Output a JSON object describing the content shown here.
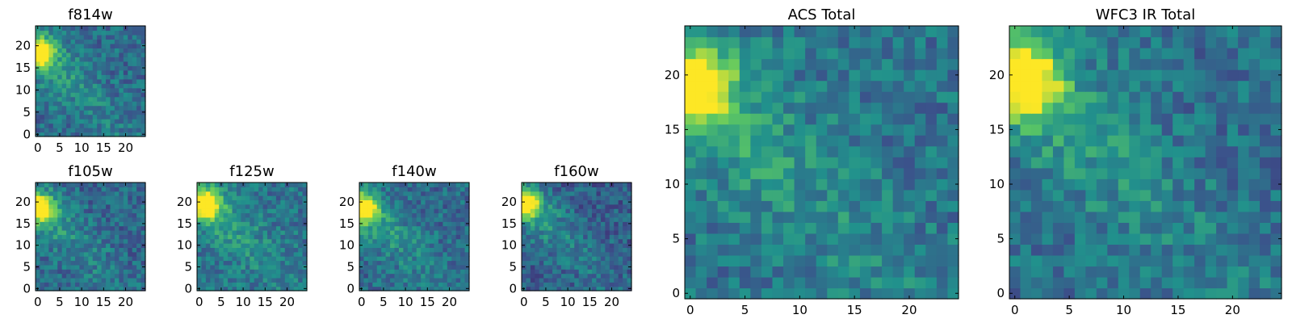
{
  "figure": {
    "colormap": {
      "name": "viridis",
      "stops": [
        "#440154",
        "#3b528b",
        "#21918c",
        "#5ec962",
        "#fde725"
      ]
    },
    "frame_color": "#000000"
  },
  "chart_data": [
    {
      "type": "heatmap",
      "id": "f814w",
      "title": "f814w",
      "grid_size": 25,
      "x_ticks": [
        0,
        5,
        10,
        15,
        20
      ],
      "y_ticks": [
        0,
        5,
        10,
        15,
        20
      ],
      "xlim": [
        -0.5,
        24.5
      ],
      "ylim": [
        -0.5,
        24.5
      ],
      "description": "Image stamp of a source; brightest pixels near x 0-1, y 16-21, diffuse glow along a diagonal toward lower right, noisy background",
      "peak": {
        "x": 0.5,
        "y": 18.5,
        "value": 1.0
      },
      "background_level": 0.35
    },
    {
      "type": "heatmap",
      "id": "f105w",
      "title": "f105w",
      "grid_size": 25,
      "x_ticks": [
        0,
        5,
        10,
        15,
        20
      ],
      "y_ticks": [
        0,
        5,
        10,
        15,
        20
      ],
      "xlim": [
        -0.5,
        24.5
      ],
      "ylim": [
        -0.5,
        24.5
      ],
      "peak": {
        "x": 0.5,
        "y": 18.5,
        "value": 1.0
      },
      "background_level": 0.33
    },
    {
      "type": "heatmap",
      "id": "f125w",
      "title": "f125w",
      "grid_size": 25,
      "x_ticks": [
        0,
        5,
        10,
        15,
        20
      ],
      "y_ticks": [
        0,
        5,
        10,
        15,
        20
      ],
      "xlim": [
        -0.5,
        24.5
      ],
      "ylim": [
        -0.5,
        24.5
      ],
      "peak": {
        "x": 1.5,
        "y": 19.5,
        "value": 1.0
      },
      "background_level": 0.38
    },
    {
      "type": "heatmap",
      "id": "f140w",
      "title": "f140w",
      "grid_size": 25,
      "x_ticks": [
        0,
        5,
        10,
        15,
        20
      ],
      "y_ticks": [
        0,
        5,
        10,
        15,
        20
      ],
      "xlim": [
        -0.5,
        24.5
      ],
      "ylim": [
        -0.5,
        24.5
      ],
      "peak": {
        "x": 0.5,
        "y": 18.5,
        "value": 1.0
      },
      "background_level": 0.35
    },
    {
      "type": "heatmap",
      "id": "f160w",
      "title": "f160w",
      "grid_size": 25,
      "x_ticks": [
        0,
        5,
        10,
        15,
        20
      ],
      "y_ticks": [
        0,
        5,
        10,
        15,
        20
      ],
      "xlim": [
        -0.5,
        24.5
      ],
      "ylim": [
        -0.5,
        24.5
      ],
      "peak": {
        "x": 0.5,
        "y": 19.5,
        "value": 1.0
      },
      "background_level": 0.3
    },
    {
      "type": "heatmap",
      "id": "acs-total",
      "title": "ACS Total",
      "grid_size": 25,
      "x_ticks": [
        0,
        5,
        10,
        15,
        20
      ],
      "y_ticks": [
        0,
        5,
        10,
        15,
        20
      ],
      "xlim": [
        -0.5,
        24.5
      ],
      "ylim": [
        -0.5,
        24.5
      ],
      "peak": {
        "x": 0.5,
        "y": 19,
        "value": 1.0
      },
      "background_level": 0.38
    },
    {
      "type": "heatmap",
      "id": "wfc3-ir-total",
      "title": "WFC3 IR Total",
      "grid_size": 25,
      "x_ticks": [
        0,
        5,
        10,
        15,
        20
      ],
      "y_ticks": [
        0,
        5,
        10,
        15,
        20
      ],
      "xlim": [
        -0.5,
        24.5
      ],
      "ylim": [
        -0.5,
        24.5
      ],
      "peak": {
        "x": 1,
        "y": 19.5,
        "value": 1.0
      },
      "background_level": 0.36
    }
  ]
}
